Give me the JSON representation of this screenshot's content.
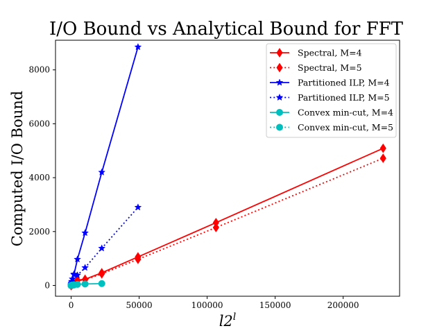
{
  "chart_data": {
    "type": "line",
    "title": "I/O Bound vs Analytical Bound for FFT",
    "xlabel": "l2",
    "xlabel_sup": "l",
    "ylabel": "Computed I/O Bound",
    "xlim": [
      -11500,
      241500
    ],
    "ylim": [
      -400,
      9100
    ],
    "xticks": [
      0,
      50000,
      100000,
      150000,
      200000
    ],
    "xtick_labels": [
      "0",
      "50000",
      "100000",
      "150000",
      "200000"
    ],
    "yticks": [
      0,
      2000,
      4000,
      6000,
      8000
    ],
    "ytick_labels": [
      "0",
      "2000",
      "4000",
      "6000",
      "8000"
    ],
    "grid": false,
    "legend_position": "top-right",
    "series": [
      {
        "name": "Spectral, M=4",
        "color": "#ff0000",
        "linestyle": "solid",
        "marker": "diamond",
        "x": [
          0,
          2,
          8,
          24,
          64,
          160,
          384,
          896,
          2048,
          4608,
          10240,
          22528,
          49152,
          106496,
          229376
        ],
        "y": [
          0,
          0,
          1,
          3,
          6,
          10,
          20,
          42,
          90,
          200,
          230,
          470,
          1060,
          2330,
          5090
        ]
      },
      {
        "name": "Spectral, M=5",
        "color": "#ff0000",
        "linestyle": "dotted",
        "marker": "diamond",
        "x": [
          0,
          2,
          8,
          24,
          64,
          160,
          384,
          896,
          2048,
          4608,
          10240,
          22528,
          49152,
          106496,
          229376
        ],
        "y": [
          0,
          0,
          1,
          2,
          5,
          9,
          18,
          38,
          82,
          180,
          210,
          430,
          970,
          2150,
          4720
        ]
      },
      {
        "name": "Partitioned ILP, M=4",
        "color": "#0000ff",
        "linestyle": "solid",
        "marker": "star",
        "x": [
          0,
          2,
          8,
          24,
          64,
          160,
          384,
          896,
          2048,
          4608,
          10240,
          22528,
          49152
        ],
        "y": [
          0,
          2,
          10,
          25,
          50,
          90,
          150,
          240,
          400,
          970,
          1950,
          4200,
          8850
        ]
      },
      {
        "name": "Partitioned ILP, M=5",
        "color": "#0000ff",
        "linestyle": "dotted",
        "marker": "star",
        "x": [
          0,
          2,
          8,
          24,
          64,
          160,
          384,
          896,
          2048,
          4608,
          10240,
          22528,
          49152
        ],
        "y": [
          0,
          1,
          5,
          12,
          25,
          45,
          70,
          110,
          420,
          380,
          660,
          1380,
          2900
        ]
      },
      {
        "name": "Convex min-cut, M=4",
        "color": "#00bfbf",
        "linestyle": "solid",
        "marker": "circle",
        "x": [
          0,
          2,
          8,
          24,
          64,
          160,
          384,
          896,
          2048,
          4608,
          10240,
          22528
        ],
        "y": [
          0,
          0,
          1,
          2,
          3,
          5,
          8,
          14,
          25,
          40,
          55,
          70
        ]
      },
      {
        "name": "Convex min-cut, M=5",
        "color": "#00bfbf",
        "linestyle": "dotted",
        "marker": "circle",
        "x": [
          0,
          2,
          8,
          24,
          64,
          160,
          384,
          896,
          2048
        ],
        "y": [
          0,
          0,
          1,
          2,
          3,
          4,
          6,
          10,
          18
        ]
      }
    ]
  }
}
